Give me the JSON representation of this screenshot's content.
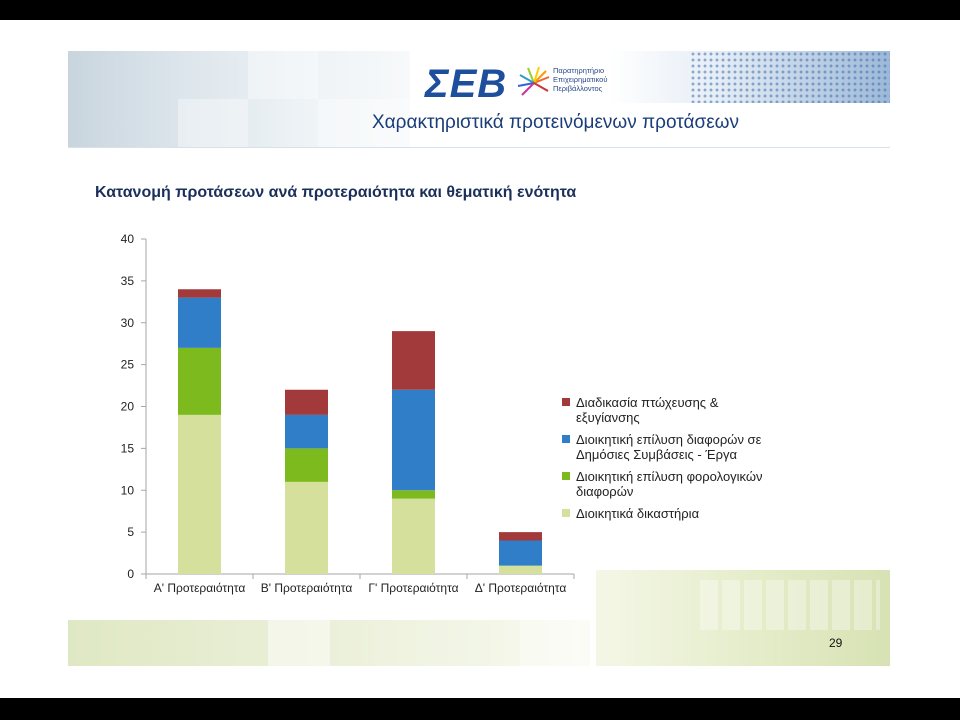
{
  "header": {
    "logo_text": "ΣΕΒ",
    "logo_tagline": "Παρατηρητήριο Επιχειρηματικού Περιβάλλοντος",
    "title": "Χαρακτηριστικά προτεινόμενων προτάσεων",
    "subtitle": "Κατανομή προτάσεων ανά προτεραιότητα και θεματική ενότητα"
  },
  "footer": {
    "page_number": "29"
  },
  "chart_data": {
    "type": "bar",
    "stacked": true,
    "categories": [
      "Α' Προτεραιότητα",
      "Β' Προτεραιότητα",
      "Γ' Προτεραιότητα",
      "Δ' Προτεραιότητα"
    ],
    "series": [
      {
        "name": "Διοικητικά δικαστήρια",
        "color": "#d4e09b",
        "values": [
          19,
          11,
          9,
          1
        ]
      },
      {
        "name": "Διοικητική επίλυση φορολογικών διαφορών",
        "color": "#7cba1e",
        "values": [
          8,
          4,
          1,
          0
        ]
      },
      {
        "name": "Διοικητική επίλυση διαφορών σε Δημόσιες Συμβάσεις - Έργα",
        "color": "#2f7ec7",
        "values": [
          6,
          4,
          12,
          3
        ]
      },
      {
        "name": "Διαδικασία πτώχευσης & εξυγίανσης",
        "color": "#a2393a",
        "values": [
          1,
          3,
          7,
          1
        ]
      }
    ],
    "ylim": [
      0,
      40
    ],
    "yticks": [
      0,
      5,
      10,
      15,
      20,
      25,
      30,
      35,
      40
    ],
    "grid": false,
    "legend_position": "right"
  }
}
